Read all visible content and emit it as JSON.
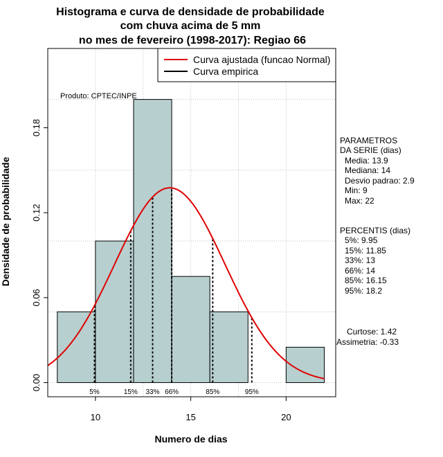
{
  "chart_data": {
    "type": "bar",
    "title_lines": [
      "Histograma e curva de densidade de probabilidade",
      "com chuva acima de 5 mm",
      "no mes de fevereiro (1998-2017): Regiao 66"
    ],
    "xlabel": "Numero de dias",
    "ylabel": "Densidade de probabilidade",
    "xlim": [
      7.5,
      22.6
    ],
    "ylim": [
      -0.01,
      0.236
    ],
    "x_ticks": [
      10,
      15,
      20
    ],
    "y_ticks": [
      0.0,
      0.06,
      0.12,
      0.18
    ],
    "y_tick_labels": [
      "0.00",
      "0.06",
      "0.12",
      "0.18"
    ],
    "x_grid": [
      10,
      12.5,
      15,
      17.5,
      20
    ],
    "y_grid": [
      0.0,
      0.05,
      0.1,
      0.15,
      0.2
    ],
    "bins": [
      {
        "from": 8,
        "to": 10,
        "density": 0.05
      },
      {
        "from": 10,
        "to": 12,
        "density": 0.1
      },
      {
        "from": 12,
        "to": 14,
        "density": 0.2
      },
      {
        "from": 14,
        "to": 16,
        "density": 0.075
      },
      {
        "from": 16,
        "to": 18,
        "density": 0.05
      },
      {
        "from": 18,
        "to": 20,
        "density": 0.0
      },
      {
        "from": 20,
        "to": 22,
        "density": 0.025
      }
    ],
    "normal_fit": {
      "mean": 13.9,
      "sd": 2.9,
      "from": 7.5,
      "to": 22
    },
    "percentile_markers": [
      {
        "label": "5%",
        "x": 9.95
      },
      {
        "label": "15%",
        "x": 11.85
      },
      {
        "label": "33%",
        "x": 13
      },
      {
        "label": "66%",
        "x": 14
      },
      {
        "label": "85%",
        "x": 16.15
      },
      {
        "label": "95%",
        "x": 18.2
      }
    ],
    "product_note": "Produto: CPTEC/INPE",
    "legend": {
      "position": "top-right",
      "entries": [
        {
          "label": "Curva ajustada (funcao Normal)",
          "color": "#e00000"
        },
        {
          "label": "Curva empirica",
          "color": "#000000"
        }
      ]
    },
    "colors": {
      "bar_fill": "#b7cfcf",
      "fit_line": "#e00000",
      "grid": "#c0c0c0"
    }
  },
  "stats_panel": {
    "params_title": [
      "PARAMETROS",
      "DA SERIE (dias)"
    ],
    "params": [
      "Media: 13.9",
      "Mediana: 14",
      "Desvio padrao: 2.9",
      "Min: 9",
      "Max: 22"
    ],
    "percentis_title": "PERCENTIS (dias)",
    "percentis": [
      "5%: 9.95",
      "15%: 11.85",
      "33%: 13",
      "66%: 14",
      "85%: 16.15",
      "95%: 18.2"
    ],
    "shape": [
      "Curtose: 1.42",
      "Assimetria: -0.33"
    ]
  }
}
